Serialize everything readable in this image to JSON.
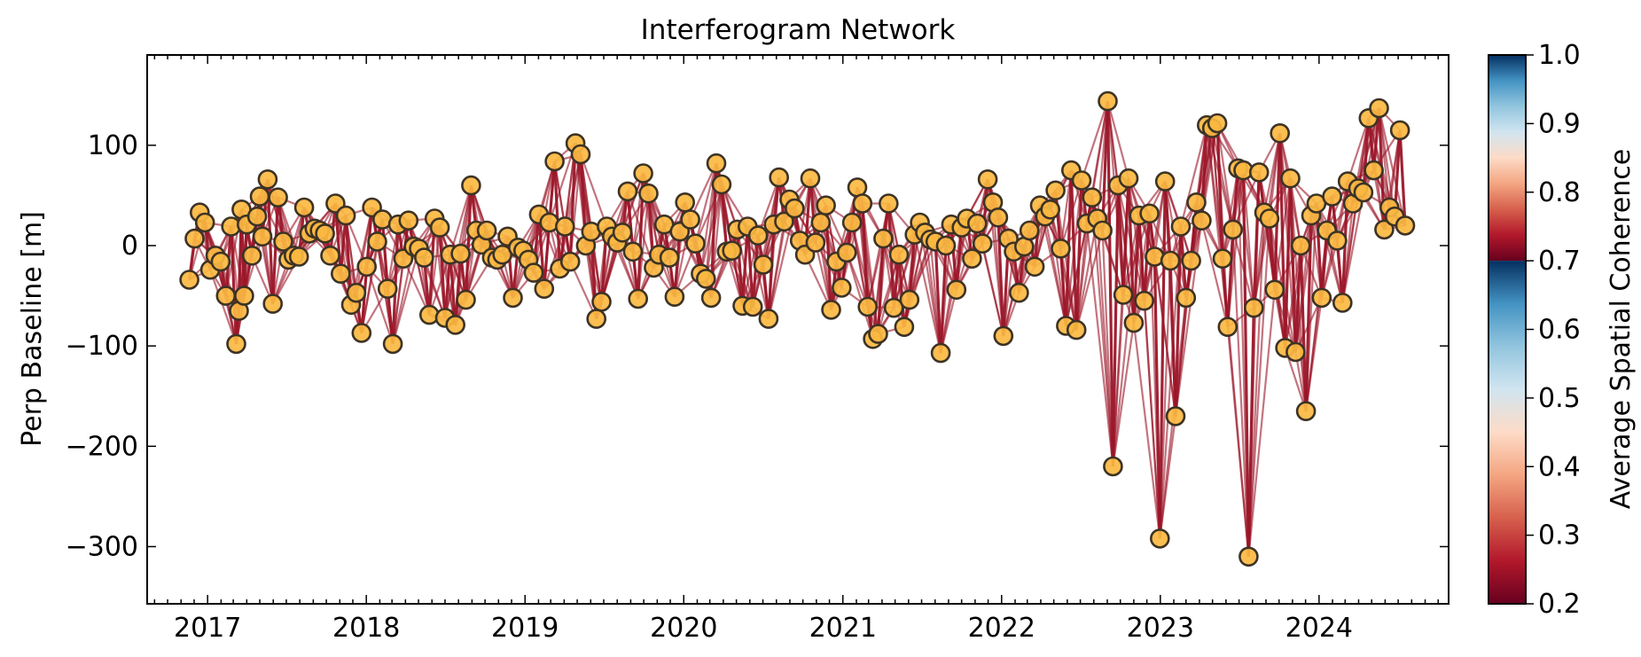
{
  "chart_data": {
    "type": "scatter",
    "title": "Interferogram Network",
    "xlabel": "",
    "ylabel": "Perp Baseline [m]",
    "x_ticks": [
      "2017",
      "2018",
      "2019",
      "2020",
      "2021",
      "2022",
      "2023",
      "2024"
    ],
    "xlim": [
      "2016-08-15",
      "2024-10-25"
    ],
    "y_ticks": [
      100,
      0,
      -100,
      -200,
      -300
    ],
    "ylim": [
      -357,
      190
    ],
    "grid": false,
    "colorbar": {
      "label": "Average Spatial Coherence",
      "range": [
        0.2,
        1.0
      ],
      "ticks": [
        1.0,
        0.9,
        0.8,
        0.7,
        0.6,
        0.5,
        0.4,
        0.3,
        0.2
      ],
      "colormap": "RdBu",
      "colored_from": 0.2,
      "colored_to": 0.7
    },
    "edge_color": "#9b1528",
    "marker_fill": "#fbb941",
    "marker_edge": "#3d3325",
    "edge_coherence_approx": 0.3,
    "acquisitions": [
      {
        "date": "2016-11-20",
        "bperp": -34
      },
      {
        "date": "2016-12-02",
        "bperp": 7
      },
      {
        "date": "2016-12-14",
        "bperp": 33
      },
      {
        "date": "2016-12-26",
        "bperp": 23
      },
      {
        "date": "2017-01-07",
        "bperp": -24
      },
      {
        "date": "2017-01-19",
        "bperp": -10
      },
      {
        "date": "2017-01-31",
        "bperp": -16
      },
      {
        "date": "2017-02-12",
        "bperp": -50
      },
      {
        "date": "2017-02-24",
        "bperp": 19
      },
      {
        "date": "2017-03-08",
        "bperp": -98
      },
      {
        "date": "2017-03-14",
        "bperp": -65
      },
      {
        "date": "2017-03-20",
        "bperp": 36
      },
      {
        "date": "2017-03-26",
        "bperp": -50
      },
      {
        "date": "2017-04-01",
        "bperp": 21
      },
      {
        "date": "2017-04-13",
        "bperp": -10
      },
      {
        "date": "2017-04-25",
        "bperp": 29
      },
      {
        "date": "2017-05-01",
        "bperp": 49
      },
      {
        "date": "2017-05-07",
        "bperp": 9
      },
      {
        "date": "2017-05-19",
        "bperp": 66
      },
      {
        "date": "2017-05-31",
        "bperp": -58
      },
      {
        "date": "2017-06-12",
        "bperp": 48
      },
      {
        "date": "2017-06-24",
        "bperp": 4
      },
      {
        "date": "2017-07-06",
        "bperp": -14
      },
      {
        "date": "2017-07-18",
        "bperp": -10
      },
      {
        "date": "2017-07-30",
        "bperp": -11
      },
      {
        "date": "2017-08-11",
        "bperp": 38
      },
      {
        "date": "2017-08-23",
        "bperp": 12
      },
      {
        "date": "2017-09-04",
        "bperp": 17
      },
      {
        "date": "2017-09-16",
        "bperp": 15
      },
      {
        "date": "2017-09-28",
        "bperp": 12
      },
      {
        "date": "2017-10-10",
        "bperp": -10
      },
      {
        "date": "2017-10-22",
        "bperp": 42
      },
      {
        "date": "2017-11-03",
        "bperp": -28
      },
      {
        "date": "2017-11-15",
        "bperp": 30
      },
      {
        "date": "2017-11-27",
        "bperp": -59
      },
      {
        "date": "2017-12-09",
        "bperp": -47
      },
      {
        "date": "2017-12-21",
        "bperp": -87
      },
      {
        "date": "2018-01-02",
        "bperp": -21
      },
      {
        "date": "2018-01-14",
        "bperp": 38
      },
      {
        "date": "2018-01-26",
        "bperp": 4
      },
      {
        "date": "2018-02-07",
        "bperp": 26
      },
      {
        "date": "2018-02-19",
        "bperp": -43
      },
      {
        "date": "2018-03-03",
        "bperp": -98
      },
      {
        "date": "2018-03-15",
        "bperp": 21
      },
      {
        "date": "2018-03-27",
        "bperp": -13
      },
      {
        "date": "2018-04-08",
        "bperp": 25
      },
      {
        "date": "2018-04-20",
        "bperp": -1
      },
      {
        "date": "2018-05-02",
        "bperp": -3
      },
      {
        "date": "2018-05-14",
        "bperp": -12
      },
      {
        "date": "2018-05-26",
        "bperp": -69
      },
      {
        "date": "2018-06-07",
        "bperp": 27
      },
      {
        "date": "2018-06-19",
        "bperp": 18
      },
      {
        "date": "2018-07-01",
        "bperp": -72
      },
      {
        "date": "2018-07-13",
        "bperp": -9
      },
      {
        "date": "2018-07-25",
        "bperp": -79
      },
      {
        "date": "2018-08-06",
        "bperp": -8
      },
      {
        "date": "2018-08-18",
        "bperp": -54
      },
      {
        "date": "2018-08-30",
        "bperp": 60
      },
      {
        "date": "2018-09-11",
        "bperp": 15
      },
      {
        "date": "2018-09-23",
        "bperp": 1
      },
      {
        "date": "2018-10-05",
        "bperp": 15
      },
      {
        "date": "2018-10-17",
        "bperp": -12
      },
      {
        "date": "2018-10-29",
        "bperp": -14
      },
      {
        "date": "2018-11-10",
        "bperp": -9
      },
      {
        "date": "2018-11-22",
        "bperp": 9
      },
      {
        "date": "2018-12-04",
        "bperp": -52
      },
      {
        "date": "2018-12-16",
        "bperp": -2
      },
      {
        "date": "2018-12-28",
        "bperp": -5
      },
      {
        "date": "2019-01-09",
        "bperp": -14
      },
      {
        "date": "2019-01-21",
        "bperp": -27
      },
      {
        "date": "2019-02-02",
        "bperp": 31
      },
      {
        "date": "2019-02-14",
        "bperp": -43
      },
      {
        "date": "2019-02-26",
        "bperp": 23
      },
      {
        "date": "2019-03-10",
        "bperp": 84
      },
      {
        "date": "2019-03-22",
        "bperp": -23
      },
      {
        "date": "2019-04-03",
        "bperp": 19
      },
      {
        "date": "2019-04-15",
        "bperp": -16
      },
      {
        "date": "2019-04-27",
        "bperp": 102
      },
      {
        "date": "2019-05-09",
        "bperp": 91
      },
      {
        "date": "2019-05-21",
        "bperp": 0
      },
      {
        "date": "2019-06-02",
        "bperp": 14
      },
      {
        "date": "2019-06-14",
        "bperp": -73
      },
      {
        "date": "2019-06-26",
        "bperp": -56
      },
      {
        "date": "2019-07-08",
        "bperp": 19
      },
      {
        "date": "2019-07-20",
        "bperp": 9
      },
      {
        "date": "2019-08-01",
        "bperp": 3
      },
      {
        "date": "2019-08-13",
        "bperp": 13
      },
      {
        "date": "2019-08-25",
        "bperp": 54
      },
      {
        "date": "2019-09-06",
        "bperp": -6
      },
      {
        "date": "2019-09-18",
        "bperp": -53
      },
      {
        "date": "2019-09-30",
        "bperp": 72
      },
      {
        "date": "2019-10-12",
        "bperp": 52
      },
      {
        "date": "2019-10-24",
        "bperp": -22
      },
      {
        "date": "2019-11-05",
        "bperp": -9
      },
      {
        "date": "2019-11-17",
        "bperp": 21
      },
      {
        "date": "2019-11-29",
        "bperp": -12
      },
      {
        "date": "2019-12-11",
        "bperp": -51
      },
      {
        "date": "2019-12-23",
        "bperp": 14
      },
      {
        "date": "2020-01-04",
        "bperp": 43
      },
      {
        "date": "2020-01-16",
        "bperp": 26
      },
      {
        "date": "2020-01-28",
        "bperp": 2
      },
      {
        "date": "2020-02-09",
        "bperp": -28
      },
      {
        "date": "2020-02-21",
        "bperp": -33
      },
      {
        "date": "2020-03-04",
        "bperp": -52
      },
      {
        "date": "2020-03-16",
        "bperp": 82
      },
      {
        "date": "2020-03-28",
        "bperp": 61
      },
      {
        "date": "2020-04-09",
        "bperp": -6
      },
      {
        "date": "2020-04-21",
        "bperp": -5
      },
      {
        "date": "2020-05-03",
        "bperp": 16
      },
      {
        "date": "2020-05-15",
        "bperp": -60
      },
      {
        "date": "2020-05-27",
        "bperp": 19
      },
      {
        "date": "2020-06-08",
        "bperp": -61
      },
      {
        "date": "2020-06-20",
        "bperp": 10
      },
      {
        "date": "2020-07-02",
        "bperp": -19
      },
      {
        "date": "2020-07-14",
        "bperp": -73
      },
      {
        "date": "2020-07-26",
        "bperp": 21
      },
      {
        "date": "2020-08-07",
        "bperp": 68
      },
      {
        "date": "2020-08-19",
        "bperp": 24
      },
      {
        "date": "2020-08-31",
        "bperp": 46
      },
      {
        "date": "2020-09-12",
        "bperp": 37
      },
      {
        "date": "2020-09-24",
        "bperp": 5
      },
      {
        "date": "2020-10-06",
        "bperp": -9
      },
      {
        "date": "2020-10-18",
        "bperp": 67
      },
      {
        "date": "2020-10-30",
        "bperp": 3
      },
      {
        "date": "2020-11-11",
        "bperp": 23
      },
      {
        "date": "2020-11-23",
        "bperp": 40
      },
      {
        "date": "2020-12-05",
        "bperp": -64
      },
      {
        "date": "2020-12-17",
        "bperp": -16
      },
      {
        "date": "2020-12-29",
        "bperp": -42
      },
      {
        "date": "2021-01-10",
        "bperp": -7
      },
      {
        "date": "2021-01-22",
        "bperp": 23
      },
      {
        "date": "2021-02-03",
        "bperp": 58
      },
      {
        "date": "2021-02-15",
        "bperp": 42
      },
      {
        "date": "2021-02-27",
        "bperp": -61
      },
      {
        "date": "2021-03-11",
        "bperp": -93
      },
      {
        "date": "2021-03-23",
        "bperp": -88
      },
      {
        "date": "2021-04-04",
        "bperp": 7
      },
      {
        "date": "2021-04-16",
        "bperp": 42
      },
      {
        "date": "2021-04-28",
        "bperp": -62
      },
      {
        "date": "2021-05-10",
        "bperp": -9
      },
      {
        "date": "2021-05-22",
        "bperp": -81
      },
      {
        "date": "2021-06-03",
        "bperp": -54
      },
      {
        "date": "2021-06-15",
        "bperp": 11
      },
      {
        "date": "2021-06-27",
        "bperp": 23
      },
      {
        "date": "2021-07-09",
        "bperp": 13
      },
      {
        "date": "2021-07-21",
        "bperp": 6
      },
      {
        "date": "2021-08-02",
        "bperp": 4
      },
      {
        "date": "2021-08-14",
        "bperp": -107
      },
      {
        "date": "2021-08-26",
        "bperp": 0
      },
      {
        "date": "2021-09-07",
        "bperp": 21
      },
      {
        "date": "2021-09-19",
        "bperp": -44
      },
      {
        "date": "2021-10-01",
        "bperp": 18
      },
      {
        "date": "2021-10-13",
        "bperp": 27
      },
      {
        "date": "2021-10-25",
        "bperp": -13
      },
      {
        "date": "2021-11-06",
        "bperp": 22
      },
      {
        "date": "2021-11-18",
        "bperp": 2
      },
      {
        "date": "2021-11-30",
        "bperp": 66
      },
      {
        "date": "2021-12-12",
        "bperp": 43
      },
      {
        "date": "2021-12-24",
        "bperp": 28
      },
      {
        "date": "2022-01-05",
        "bperp": -90
      },
      {
        "date": "2022-01-17",
        "bperp": 7
      },
      {
        "date": "2022-01-29",
        "bperp": -6
      },
      {
        "date": "2022-02-10",
        "bperp": -47
      },
      {
        "date": "2022-02-22",
        "bperp": -1
      },
      {
        "date": "2022-03-06",
        "bperp": 15
      },
      {
        "date": "2022-03-18",
        "bperp": -21
      },
      {
        "date": "2022-03-30",
        "bperp": 40
      },
      {
        "date": "2022-04-11",
        "bperp": 29
      },
      {
        "date": "2022-04-23",
        "bperp": 36
      },
      {
        "date": "2022-05-05",
        "bperp": 55
      },
      {
        "date": "2022-05-17",
        "bperp": -3
      },
      {
        "date": "2022-05-29",
        "bperp": -80
      },
      {
        "date": "2022-06-10",
        "bperp": 75
      },
      {
        "date": "2022-06-22",
        "bperp": -84
      },
      {
        "date": "2022-07-04",
        "bperp": 65
      },
      {
        "date": "2022-07-16",
        "bperp": 22
      },
      {
        "date": "2022-07-28",
        "bperp": 48
      },
      {
        "date": "2022-08-09",
        "bperp": 27
      },
      {
        "date": "2022-08-21",
        "bperp": 15
      },
      {
        "date": "2022-09-02",
        "bperp": 144
      },
      {
        "date": "2022-09-14",
        "bperp": -220
      },
      {
        "date": "2022-09-26",
        "bperp": 60
      },
      {
        "date": "2022-10-08",
        "bperp": -49
      },
      {
        "date": "2022-10-20",
        "bperp": 67
      },
      {
        "date": "2022-11-01",
        "bperp": -77
      },
      {
        "date": "2022-11-13",
        "bperp": 30
      },
      {
        "date": "2022-11-25",
        "bperp": -55
      },
      {
        "date": "2022-12-07",
        "bperp": 32
      },
      {
        "date": "2022-12-19",
        "bperp": -11
      },
      {
        "date": "2022-12-31",
        "bperp": -292
      },
      {
        "date": "2023-01-12",
        "bperp": 64
      },
      {
        "date": "2023-01-24",
        "bperp": -15
      },
      {
        "date": "2023-02-05",
        "bperp": -170
      },
      {
        "date": "2023-02-17",
        "bperp": 19
      },
      {
        "date": "2023-03-01",
        "bperp": -52
      },
      {
        "date": "2023-03-13",
        "bperp": -15
      },
      {
        "date": "2023-03-25",
        "bperp": 43
      },
      {
        "date": "2023-04-06",
        "bperp": 25
      },
      {
        "date": "2023-04-18",
        "bperp": 120
      },
      {
        "date": "2023-04-30",
        "bperp": 117
      },
      {
        "date": "2023-05-12",
        "bperp": 122
      },
      {
        "date": "2023-05-24",
        "bperp": -13
      },
      {
        "date": "2023-06-05",
        "bperp": -81
      },
      {
        "date": "2023-06-17",
        "bperp": 16
      },
      {
        "date": "2023-06-29",
        "bperp": 77
      },
      {
        "date": "2023-07-11",
        "bperp": 75
      },
      {
        "date": "2023-07-23",
        "bperp": -310
      },
      {
        "date": "2023-08-04",
        "bperp": -62
      },
      {
        "date": "2023-08-16",
        "bperp": 73
      },
      {
        "date": "2023-08-28",
        "bperp": 33
      },
      {
        "date": "2023-09-09",
        "bperp": 27
      },
      {
        "date": "2023-09-21",
        "bperp": -44
      },
      {
        "date": "2023-10-03",
        "bperp": 112
      },
      {
        "date": "2023-10-15",
        "bperp": -102
      },
      {
        "date": "2023-10-27",
        "bperp": 67
      },
      {
        "date": "2023-11-08",
        "bperp": -106
      },
      {
        "date": "2023-11-20",
        "bperp": 0
      },
      {
        "date": "2023-12-02",
        "bperp": -165
      },
      {
        "date": "2023-12-14",
        "bperp": 30
      },
      {
        "date": "2023-12-26",
        "bperp": 42
      },
      {
        "date": "2024-01-07",
        "bperp": -52
      },
      {
        "date": "2024-01-19",
        "bperp": 15
      },
      {
        "date": "2024-01-31",
        "bperp": 49
      },
      {
        "date": "2024-02-12",
        "bperp": 5
      },
      {
        "date": "2024-02-24",
        "bperp": -57
      },
      {
        "date": "2024-03-07",
        "bperp": 64
      },
      {
        "date": "2024-03-19",
        "bperp": 42
      },
      {
        "date": "2024-03-31",
        "bperp": 57
      },
      {
        "date": "2024-04-12",
        "bperp": 53
      },
      {
        "date": "2024-04-24",
        "bperp": 127
      },
      {
        "date": "2024-05-06",
        "bperp": 75
      },
      {
        "date": "2024-05-18",
        "bperp": 137
      },
      {
        "date": "2024-05-30",
        "bperp": 16
      },
      {
        "date": "2024-06-11",
        "bperp": 38
      },
      {
        "date": "2024-06-23",
        "bperp": 29
      },
      {
        "date": "2024-07-05",
        "bperp": 115
      },
      {
        "date": "2024-07-17",
        "bperp": 20
      }
    ]
  }
}
